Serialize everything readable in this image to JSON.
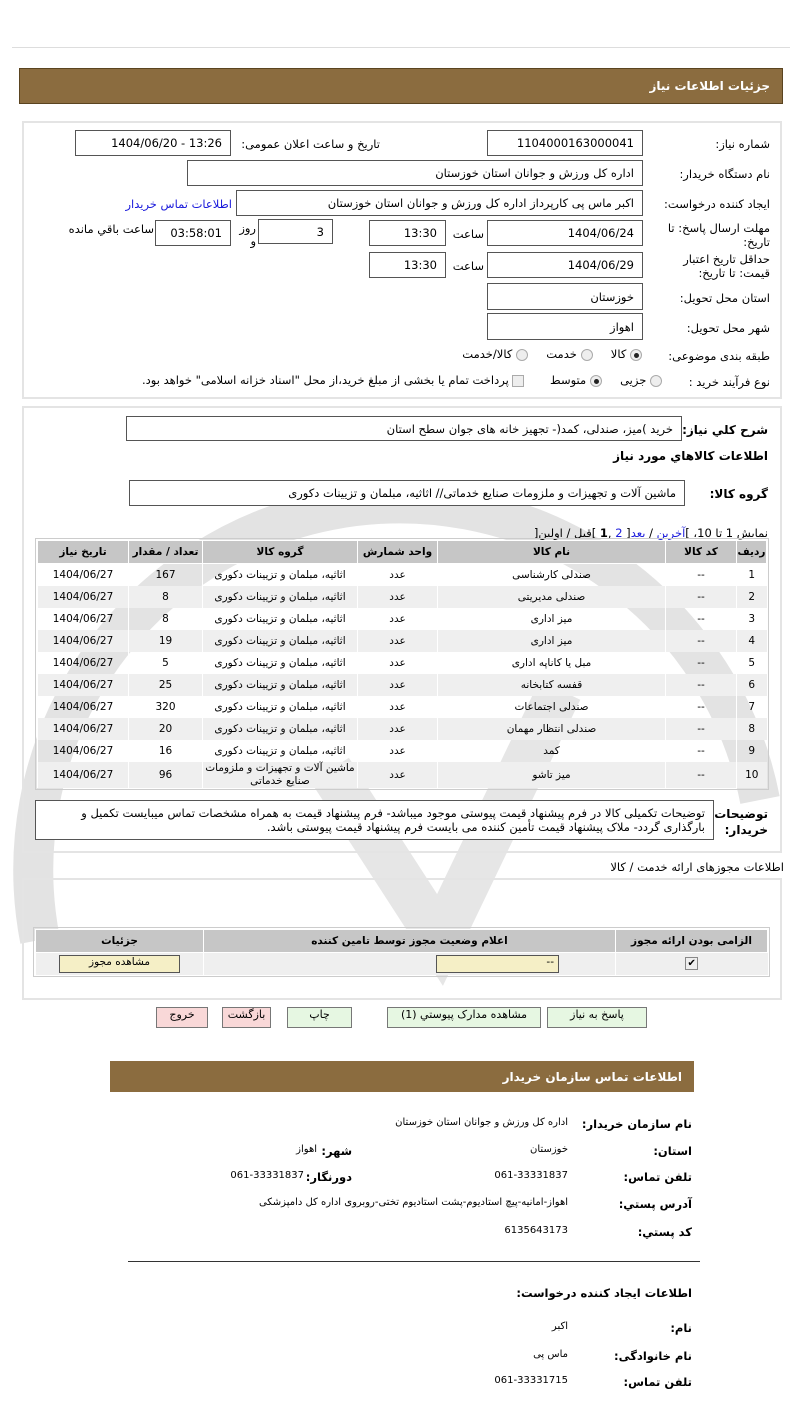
{
  "header": {
    "title": "جزئیات اطلاعات نیاز"
  },
  "form": {
    "need_number_label": "شماره نیاز:",
    "need_number": "1104000163000041",
    "announce_label": "تاریخ و ساعت اعلان عمومی:",
    "announce_value": "1404/06/20 - 13:26",
    "buyer_label": "نام دستگاه خریدار:",
    "buyer": "اداره کل ورزش و جوانان استان خوزستان",
    "creator_label": "ایجاد کننده درخواست:",
    "creator": "اکبر ماس پی کارپرداز اداره کل ورزش و جوانان استان خوزستان",
    "contact_link": "اطلاعات تماس خریدار",
    "deadline_label": "مهلت ارسال پاسخ: تا تاریخ:",
    "deadline_date": "1404/06/24",
    "time_label": "ساعت",
    "deadline_time": "13:30",
    "days": "3",
    "days_label": "روز و",
    "remaining": "03:58:01",
    "remaining_label": "ساعت باقي مانده",
    "validity_label": "حداقل تاریخ اعتبار قیمت: تا تاریخ:",
    "validity_date": "1404/06/29",
    "validity_time": "13:30",
    "province_label": "استان محل تحویل:",
    "province": "خوزستان",
    "city_label": "شهر محل تحویل:",
    "city": "اهواز",
    "category_label": "طبقه بندی موضوعی:",
    "category_options": [
      "کالا",
      "خدمت",
      "کالا/خدمت"
    ],
    "category_selected": "کالا",
    "process_label": "نوع فرآیند خرید :",
    "process_options": [
      "جزیی",
      "متوسط"
    ],
    "process_selected": "متوسط",
    "treasury_text": "پرداخت تمام یا بخشی از مبلغ خرید،از محل \"اسناد خزانه اسلامی\" خواهد بود.",
    "treasury_checked": false
  },
  "goods": {
    "desc_label": "شرح کلي نياز:",
    "desc": "خرید )میز، صندلی، کمد(- تجهیز خانه های جوان سطح استان",
    "heading": "اطلاعات كالاهاي مورد نياز",
    "group_label": "گروه کالا:",
    "group": "ماشین آلات و تجهیزات و ملزومات صنایع خدماتی// اثاثیه، مبلمان و تزیینات دکوری",
    "pagination": {
      "prefix": "نمایش 1 تا 10، ]",
      "last": "آخرین",
      "sep1": " / ",
      "next": "بعد",
      "mid": "[ ",
      "page2": "2",
      "comma": " ,",
      "page1": "1",
      "suffix": " ]قبل / اولین["
    },
    "columns": [
      "ردیف",
      "کد کالا",
      "نام کالا",
      "واحد شمارش",
      "گروه کالا",
      "تعداد / مقدار",
      "تاریخ نیاز"
    ],
    "rows": [
      [
        "1",
        "--",
        "صندلی کارشناسی",
        "عدد",
        "اثاثیه، مبلمان و تزیینات دکوری",
        "167",
        "1404/06/27"
      ],
      [
        "2",
        "--",
        "صندلی مدیریتی",
        "عدد",
        "اثاثیه، مبلمان و تزیینات دکوری",
        "8",
        "1404/06/27"
      ],
      [
        "3",
        "--",
        "میز اداری",
        "عدد",
        "اثاثیه، مبلمان و تزیینات دکوری",
        "8",
        "1404/06/27"
      ],
      [
        "4",
        "--",
        "میز اداری",
        "عدد",
        "اثاثیه، مبلمان و تزیینات دکوری",
        "19",
        "1404/06/27"
      ],
      [
        "5",
        "--",
        "مبل یا کاناپه اداری",
        "عدد",
        "اثاثیه، مبلمان و تزیینات دکوری",
        "5",
        "1404/06/27"
      ],
      [
        "6",
        "--",
        "قفسه کتابخانه",
        "عدد",
        "اثاثیه، مبلمان و تزیینات دکوری",
        "25",
        "1404/06/27"
      ],
      [
        "7",
        "--",
        "صندلی اجتماعات",
        "عدد",
        "اثاثیه، مبلمان و تزیینات دکوری",
        "320",
        "1404/06/27"
      ],
      [
        "8",
        "--",
        "صندلی انتظار مهمان",
        "عدد",
        "اثاثیه، مبلمان و تزیینات دکوری",
        "20",
        "1404/06/27"
      ],
      [
        "9",
        "--",
        "کمد",
        "عدد",
        "اثاثیه، مبلمان و تزیینات دکوری",
        "16",
        "1404/06/27"
      ],
      [
        "10",
        "--",
        "میز تاشو",
        "عدد",
        "ماشین آلات و تجهیزات و ملزومات صنایع خدماتی",
        "96",
        "1404/06/27"
      ]
    ],
    "notes_label": "توضیحات خریدار:",
    "notes": "توضیحات تکمیلی کالا در فرم پیشنهاد قیمت پیوستی موجود میباشد- فرم پیشنهاد قیمت به همراه مشخصات تماس میبایست تکمیل و بارگذاری گردد- ملاک پیشنهاد قیمت تأمین کننده می بایست فرم پیشنهاد قیمت پیوستی باشد."
  },
  "permits": {
    "title": "اطلاعات مجوزهای ارائه خدمت / کالا",
    "columns": [
      "الزامی بودن ارائه مجوز",
      "اعلام وضعیت مجوز توسط تامین کننده",
      "جزئیات"
    ],
    "required_checked": true,
    "status": "--",
    "view_button": "مشاهده مجوز"
  },
  "actions": {
    "reply": "پاسخ به نیاز",
    "attachments": "مشاهده مدارک پیوستي (1)",
    "print": "چاپ",
    "back": "بازگشت",
    "exit": "خروج"
  },
  "contact": {
    "title": "اطلاعات تماس سازمان خریدار",
    "org_label": "نام سازمان خریدار:",
    "org": "اداره کل ورزش و جوانان استان خوزستان",
    "province_label": "استان:",
    "province": "خوزستان",
    "city_label": "شهر:",
    "city": "اهواز",
    "phone_label": "تلفن تماس:",
    "phone": "061-33331837",
    "fax_label": "دورنگار:",
    "fax": "061-33331837",
    "address_label": "آدرس پستي:",
    "address": "اهواز-امانیه-پیچ استادیوم-پشت استادیوم تختی-روبروی اداره کل دامپزشکی",
    "postal_label": "کد پستي:",
    "postal": "6135643173"
  },
  "creator_info": {
    "title": "اطلاعات ایجاد کننده درخواست:",
    "name_label": "نام:",
    "name": "اکبر",
    "family_label": "نام خانوادگی:",
    "family": "ماس پی",
    "phone_label": "تلفن تماس:",
    "phone": "061-33331715"
  },
  "colors": {
    "header_bar": "#8b6c3f",
    "table_header": "#c6c6c6",
    "green_button": "#e6f7e2",
    "pink_button": "#f9d8d8",
    "link": "#1a1adb",
    "permit_input": "#f5efc6"
  }
}
